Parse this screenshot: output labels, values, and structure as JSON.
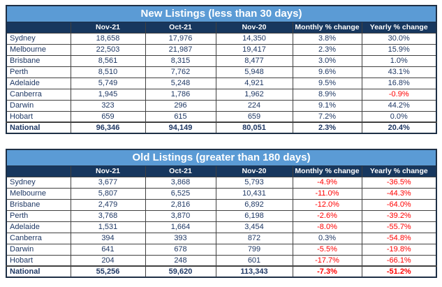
{
  "colors": {
    "title_bar_bg": "#5B9BD5",
    "title_bar_text": "#FFFFFF",
    "header_bg": "#17375E",
    "header_text": "#FFFFFF",
    "data_text": "#1F3864",
    "negative_text": "#FF0000",
    "grid_line": "#404040"
  },
  "chart_data": [
    {
      "type": "table",
      "title": "New Listings (less than 30 days)",
      "columns": [
        "",
        "Nov-21",
        "Oct-21",
        "Nov-20",
        "Monthly % change",
        "Yearly % change"
      ],
      "rows": [
        [
          "Sydney",
          "18,658",
          "17,976",
          "14,350",
          "3.8%",
          "30.0%"
        ],
        [
          "Melbourne",
          "22,503",
          "21,987",
          "19,417",
          "2.3%",
          "15.9%"
        ],
        [
          "Brisbane",
          "8,561",
          "8,315",
          "8,477",
          "3.0%",
          "1.0%"
        ],
        [
          "Perth",
          "8,510",
          "7,762",
          "5,948",
          "9.6%",
          "43.1%"
        ],
        [
          "Adelaide",
          "5,749",
          "5,248",
          "4,921",
          "9.5%",
          "16.8%"
        ],
        [
          "Canberra",
          "1,945",
          "1,786",
          "1,962",
          "8.9%",
          "-0.9%"
        ],
        [
          "Darwin",
          "323",
          "296",
          "224",
          "9.1%",
          "44.2%"
        ],
        [
          "Hobart",
          "659",
          "615",
          "659",
          "7.2%",
          "0.0%"
        ],
        [
          "National",
          "96,346",
          "94,149",
          "80,051",
          "2.3%",
          "20.4%"
        ]
      ]
    },
    {
      "type": "table",
      "title": "Old Listings (greater than 180 days)",
      "columns": [
        "",
        "Nov-21",
        "Oct-21",
        "Nov-20",
        "Monthly % change",
        "Yearly % change"
      ],
      "rows": [
        [
          "Sydney",
          "3,677",
          "3,868",
          "5,793",
          "-4.9%",
          "-36.5%"
        ],
        [
          "Melbourne",
          "5,807",
          "6,525",
          "10,431",
          "-11.0%",
          "-44.3%"
        ],
        [
          "Brisbane",
          "2,479",
          "2,816",
          "6,892",
          "-12.0%",
          "-64.0%"
        ],
        [
          "Perth",
          "3,768",
          "3,870",
          "6,198",
          "-2.6%",
          "-39.2%"
        ],
        [
          "Adelaide",
          "1,531",
          "1,664",
          "3,454",
          "-8.0%",
          "-55.7%"
        ],
        [
          "Canberra",
          "394",
          "393",
          "872",
          "0.3%",
          "-54.8%"
        ],
        [
          "Darwin",
          "641",
          "678",
          "799",
          "-5.5%",
          "-19.8%"
        ],
        [
          "Hobart",
          "204",
          "248",
          "601",
          "-17.7%",
          "-66.1%"
        ],
        [
          "National",
          "55,256",
          "59,620",
          "113,343",
          "-7.3%",
          "-51.2%"
        ]
      ]
    }
  ]
}
